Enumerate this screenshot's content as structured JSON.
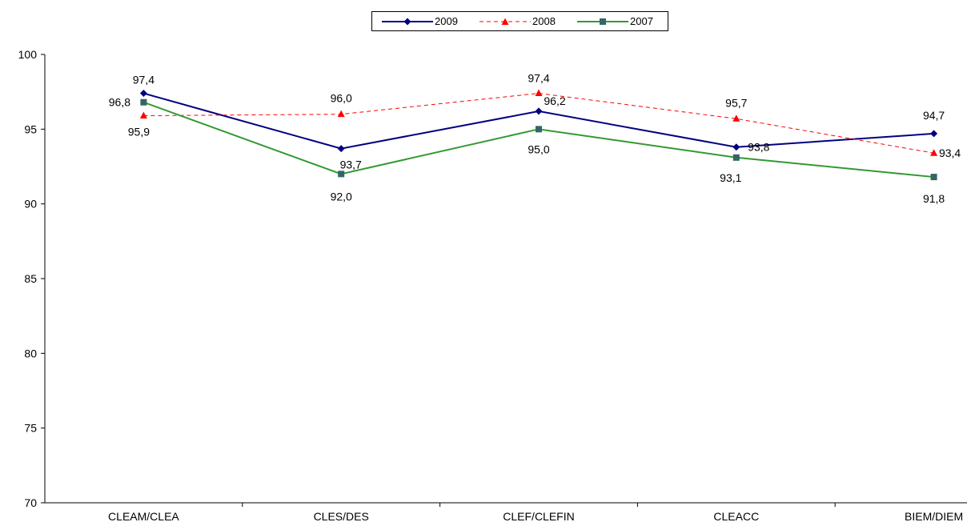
{
  "chart_data": {
    "type": "line",
    "categories": [
      "CLEAM/CLEA",
      "CLES/DES",
      "CLEF/CLEFIN",
      "CLEACC",
      "BIEM/DIEM"
    ],
    "ylim": [
      70,
      100
    ],
    "yticks": [
      70,
      75,
      80,
      85,
      90,
      95,
      100
    ],
    "grid": false,
    "legend_position": "top-center",
    "series": [
      {
        "name": "2009",
        "values": [
          97.4,
          93.7,
          96.2,
          93.8,
          94.7
        ],
        "labels": [
          "97,4",
          "93,7",
          "96,2",
          "93,8",
          "94,7"
        ],
        "color": "#000080",
        "marker": "diamond",
        "dash": "solid"
      },
      {
        "name": "2008",
        "values": [
          95.9,
          96.0,
          97.4,
          95.7,
          93.4
        ],
        "labels": [
          "95,9",
          "96,0",
          "97,4",
          "95,7",
          "93,4"
        ],
        "color": "#ff0000",
        "marker": "triangle",
        "dash": "dashed"
      },
      {
        "name": "2007",
        "values": [
          96.8,
          92.0,
          95.0,
          93.1,
          91.8
        ],
        "labels": [
          "96,8",
          "92,0",
          "95,0",
          "93,1",
          "91,8"
        ],
        "color": "#339933",
        "marker": "square",
        "dash": "solid"
      }
    ]
  }
}
